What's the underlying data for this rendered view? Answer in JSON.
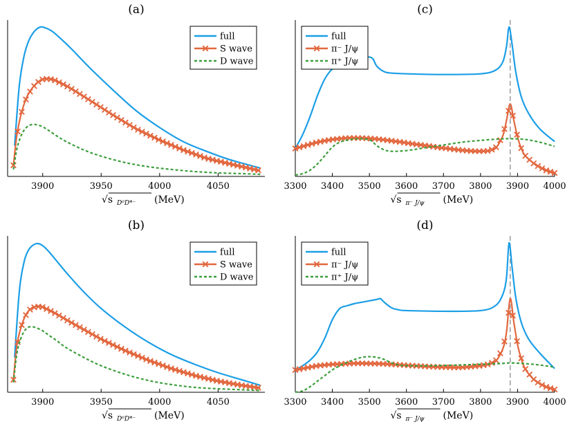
{
  "colors": {
    "full": "#1a9ee6",
    "s": "#e2673e",
    "d": "#3c9e3c",
    "dashline": "#9a9a9a"
  },
  "chart_data": [
    {
      "panel": "(a)",
      "type": "line",
      "title": "(a)",
      "xlabel_main": "√s",
      "xlabel_sub": "D⁰D*⁻",
      "xlabel_unit": "(MeV)",
      "xlim": [
        3870,
        4090
      ],
      "ylim": [
        0,
        1.12
      ],
      "xticks": [
        3900,
        3950,
        4000,
        4050
      ],
      "legend": [
        "full",
        "S wave",
        "D wave"
      ],
      "legend_position": "top-right",
      "series": [
        {
          "name": "full",
          "style": "solid",
          "x": [
            3876,
            3880,
            3884,
            3888,
            3893,
            3898,
            3902,
            3908,
            3915,
            3925,
            3940,
            3960,
            3980,
            4000,
            4020,
            4040,
            4060,
            4086
          ],
          "y": [
            0.22,
            0.65,
            0.86,
            0.97,
            1.04,
            1.07,
            1.065,
            1.04,
            0.99,
            0.91,
            0.78,
            0.62,
            0.47,
            0.35,
            0.25,
            0.18,
            0.12,
            0.06
          ]
        },
        {
          "name": "S wave",
          "style": "marker",
          "x": [
            3875,
            3878,
            3882,
            3886,
            3890,
            3895,
            3900,
            3905,
            3910,
            3920,
            3930,
            3945,
            3960,
            3980,
            4000,
            4020,
            4040,
            4060,
            4086
          ],
          "y": [
            0.08,
            0.3,
            0.46,
            0.56,
            0.62,
            0.67,
            0.695,
            0.7,
            0.69,
            0.65,
            0.6,
            0.52,
            0.44,
            0.34,
            0.26,
            0.19,
            0.13,
            0.09,
            0.04
          ]
        },
        {
          "name": "D wave",
          "style": "dashed",
          "x": [
            3875,
            3878,
            3882,
            3886,
            3890,
            3895,
            3900,
            3905,
            3912,
            3920,
            3935,
            3950,
            3970,
            3990,
            4010,
            4030,
            4050,
            4070,
            4086
          ],
          "y": [
            0.05,
            0.2,
            0.3,
            0.35,
            0.37,
            0.37,
            0.355,
            0.33,
            0.29,
            0.25,
            0.19,
            0.145,
            0.1,
            0.07,
            0.05,
            0.035,
            0.025,
            0.02,
            0.015
          ]
        }
      ]
    },
    {
      "panel": "(b)",
      "type": "line",
      "title": "(b)",
      "xlabel_main": "√s",
      "xlabel_sub": "D⁰D*⁻",
      "xlabel_unit": "(MeV)",
      "xlim": [
        3870,
        4090
      ],
      "ylim": [
        0,
        1.12
      ],
      "xticks": [
        3900,
        3950,
        4000,
        4050
      ],
      "legend": [
        "full",
        "S wave",
        "D wave"
      ],
      "legend_position": "top-right",
      "series": [
        {
          "name": "full",
          "style": "solid",
          "x": [
            3876,
            3880,
            3884,
            3888,
            3892,
            3896,
            3900,
            3905,
            3912,
            3922,
            3935,
            3950,
            3970,
            3990,
            4010,
            4030,
            4050,
            4070,
            4086
          ],
          "y": [
            0.25,
            0.72,
            0.93,
            1.02,
            1.055,
            1.065,
            1.05,
            1.01,
            0.94,
            0.84,
            0.72,
            0.6,
            0.47,
            0.36,
            0.27,
            0.2,
            0.14,
            0.09,
            0.05
          ]
        },
        {
          "name": "S wave",
          "style": "marker",
          "x": [
            3875,
            3878,
            3882,
            3886,
            3890,
            3895,
            3900,
            3905,
            3912,
            3920,
            3935,
            3950,
            3970,
            3990,
            4010,
            4030,
            4050,
            4070,
            4086
          ],
          "y": [
            0.09,
            0.34,
            0.48,
            0.56,
            0.6,
            0.615,
            0.61,
            0.59,
            0.56,
            0.52,
            0.45,
            0.38,
            0.3,
            0.23,
            0.17,
            0.12,
            0.08,
            0.05,
            0.03
          ]
        },
        {
          "name": "D wave",
          "style": "dashed",
          "x": [
            3875,
            3878,
            3882,
            3886,
            3890,
            3895,
            3900,
            3905,
            3912,
            3920,
            3935,
            3950,
            3970,
            3990,
            4010,
            4030,
            4050,
            4070,
            4086
          ],
          "y": [
            0.07,
            0.28,
            0.4,
            0.455,
            0.47,
            0.46,
            0.44,
            0.41,
            0.37,
            0.32,
            0.25,
            0.19,
            0.13,
            0.085,
            0.055,
            0.035,
            0.025,
            0.018,
            0.012
          ]
        }
      ]
    },
    {
      "panel": "(c)",
      "type": "line",
      "title": "(c)",
      "xlabel_main": "√s",
      "xlabel_sub": "π⁻ J/ψ",
      "xlabel_unit": "(MeV)",
      "xlim": [
        3300,
        4000
      ],
      "ylim": [
        0,
        1.12
      ],
      "xticks": [
        3300,
        3400,
        3500,
        3600,
        3700,
        3800,
        3900,
        4000
      ],
      "vline": 3880,
      "legend": [
        "full",
        "π⁻ J/ψ",
        "π⁺ J/ψ"
      ],
      "legend_position": "top-left",
      "series": [
        {
          "name": "full",
          "style": "solid",
          "x": [
            3300,
            3320,
            3340,
            3360,
            3380,
            3400,
            3420,
            3440,
            3460,
            3480,
            3500,
            3510,
            3520,
            3540,
            3560,
            3600,
            3700,
            3800,
            3840,
            3860,
            3870,
            3877,
            3885,
            3895,
            3910,
            3930,
            3960,
            4000
          ],
          "y": [
            0.2,
            0.3,
            0.43,
            0.58,
            0.7,
            0.77,
            0.8,
            0.825,
            0.84,
            0.85,
            0.855,
            0.84,
            0.79,
            0.75,
            0.74,
            0.735,
            0.73,
            0.735,
            0.76,
            0.82,
            0.93,
            1.07,
            0.95,
            0.75,
            0.57,
            0.45,
            0.34,
            0.25
          ]
        },
        {
          "name": "π⁻ J/ψ",
          "style": "marker",
          "x": [
            3300,
            3320,
            3340,
            3360,
            3380,
            3400,
            3420,
            3440,
            3460,
            3480,
            3500,
            3520,
            3540,
            3560,
            3580,
            3600,
            3620,
            3640,
            3660,
            3680,
            3700,
            3720,
            3740,
            3760,
            3780,
            3800,
            3820,
            3840,
            3860,
            3870,
            3880,
            3890,
            3900,
            3910,
            3920,
            3940,
            3960,
            3980,
            4000
          ],
          "y": [
            0.2,
            0.215,
            0.23,
            0.245,
            0.255,
            0.265,
            0.27,
            0.275,
            0.275,
            0.275,
            0.272,
            0.268,
            0.262,
            0.255,
            0.248,
            0.24,
            0.232,
            0.225,
            0.218,
            0.21,
            0.203,
            0.197,
            0.19,
            0.185,
            0.181,
            0.18,
            0.183,
            0.2,
            0.29,
            0.4,
            0.52,
            0.4,
            0.28,
            0.2,
            0.15,
            0.1,
            0.065,
            0.04,
            0.025
          ]
        },
        {
          "name": "π⁺ J/ψ",
          "style": "dashed",
          "x": [
            3300,
            3320,
            3340,
            3360,
            3380,
            3400,
            3420,
            3440,
            3460,
            3480,
            3500,
            3510,
            3520,
            3540,
            3560,
            3600,
            3650,
            3700,
            3750,
            3800,
            3850,
            3880,
            3920,
            3960,
            4000
          ],
          "y": [
            0.01,
            0.02,
            0.045,
            0.09,
            0.15,
            0.21,
            0.245,
            0.26,
            0.268,
            0.27,
            0.262,
            0.245,
            0.22,
            0.19,
            0.18,
            0.185,
            0.205,
            0.225,
            0.245,
            0.258,
            0.268,
            0.27,
            0.265,
            0.245,
            0.215
          ]
        }
      ]
    },
    {
      "panel": "(d)",
      "type": "line",
      "title": "(d)",
      "xlabel_main": "√s",
      "xlabel_sub": "π⁻ J/ψ",
      "xlabel_unit": "(MeV)",
      "xlim": [
        3300,
        4000
      ],
      "ylim": [
        0,
        1.12
      ],
      "xticks": [
        3300,
        3400,
        3500,
        3600,
        3700,
        3800,
        3900,
        4000
      ],
      "vline": 3880,
      "legend": [
        "full",
        "π⁻ J/ψ",
        "π⁺ J/ψ"
      ],
      "legend_position": "top-left",
      "series": [
        {
          "name": "full",
          "style": "solid",
          "x": [
            3300,
            3320,
            3340,
            3360,
            3380,
            3400,
            3420,
            3440,
            3460,
            3480,
            3500,
            3520,
            3530,
            3540,
            3560,
            3580,
            3600,
            3700,
            3800,
            3840,
            3860,
            3870,
            3877,
            3885,
            3895,
            3910,
            3930,
            3960,
            4000
          ],
          "y": [
            0.16,
            0.19,
            0.23,
            0.29,
            0.39,
            0.52,
            0.6,
            0.62,
            0.635,
            0.645,
            0.655,
            0.665,
            0.67,
            0.645,
            0.605,
            0.59,
            0.585,
            0.58,
            0.585,
            0.62,
            0.7,
            0.82,
            1.07,
            0.9,
            0.68,
            0.5,
            0.38,
            0.28,
            0.17
          ]
        },
        {
          "name": "π⁻ J/ψ",
          "style": "marker",
          "x": [
            3300,
            3320,
            3340,
            3360,
            3380,
            3400,
            3420,
            3440,
            3460,
            3480,
            3500,
            3520,
            3540,
            3560,
            3580,
            3600,
            3620,
            3640,
            3660,
            3680,
            3700,
            3720,
            3740,
            3760,
            3780,
            3800,
            3820,
            3840,
            3860,
            3870,
            3880,
            3890,
            3900,
            3910,
            3920,
            3940,
            3960,
            3980,
            4000
          ],
          "y": [
            0.16,
            0.17,
            0.18,
            0.19,
            0.195,
            0.2,
            0.202,
            0.205,
            0.207,
            0.207,
            0.206,
            0.205,
            0.203,
            0.2,
            0.197,
            0.193,
            0.19,
            0.187,
            0.184,
            0.182,
            0.18,
            0.178,
            0.178,
            0.18,
            0.185,
            0.19,
            0.2,
            0.22,
            0.31,
            0.43,
            0.67,
            0.5,
            0.34,
            0.24,
            0.17,
            0.1,
            0.06,
            0.035,
            0.02
          ]
        },
        {
          "name": "π⁺ J/ψ",
          "style": "dashed",
          "x": [
            3300,
            3320,
            3340,
            3360,
            3380,
            3400,
            3420,
            3440,
            3460,
            3480,
            3500,
            3520,
            3540,
            3560,
            3580,
            3600,
            3650,
            3700,
            3750,
            3800,
            3850,
            3880,
            3920,
            3960,
            4000
          ],
          "y": [
            0.0,
            0.01,
            0.04,
            0.08,
            0.12,
            0.16,
            0.19,
            0.215,
            0.235,
            0.25,
            0.255,
            0.25,
            0.235,
            0.21,
            0.195,
            0.19,
            0.19,
            0.192,
            0.196,
            0.2,
            0.205,
            0.21,
            0.205,
            0.195,
            0.18
          ]
        }
      ]
    }
  ]
}
